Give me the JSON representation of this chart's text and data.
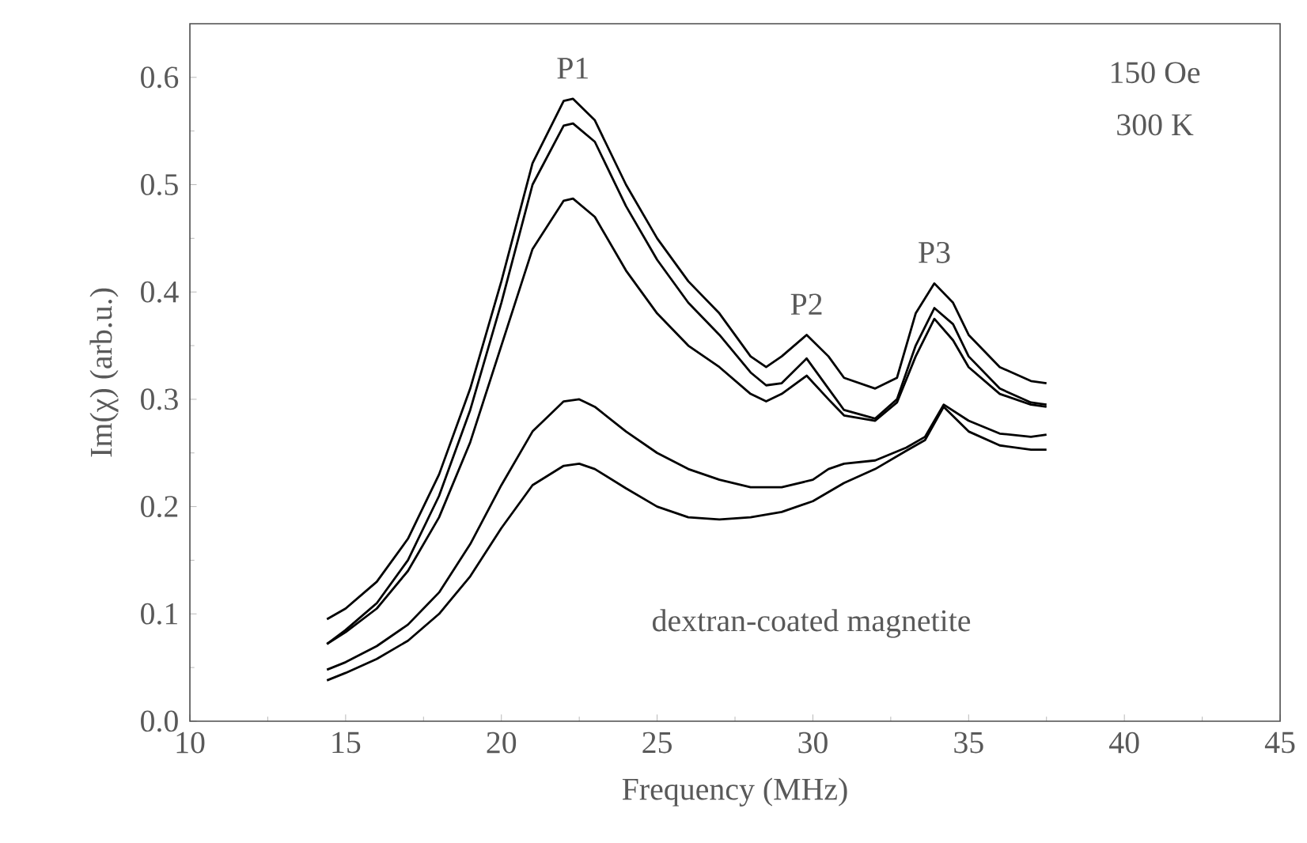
{
  "chart_data": {
    "type": "line",
    "xlabel": "Frequency (MHz)",
    "ylabel": "Im(χ) (arb.u.)",
    "xlim": [
      10,
      45
    ],
    "ylim": [
      0,
      0.65
    ],
    "xticks": [
      10,
      15,
      20,
      25,
      30,
      35,
      40,
      45
    ],
    "yticks": [
      {
        "value": 0,
        "label": "0.0"
      },
      {
        "value": 0.1,
        "label": "0.1"
      },
      {
        "value": 0.2,
        "label": "0.2"
      },
      {
        "value": 0.3,
        "label": "0.3"
      },
      {
        "value": 0.4,
        "label": "0.4"
      },
      {
        "value": 0.5,
        "label": "0.5"
      },
      {
        "value": 0.6,
        "label": "0.6"
      }
    ],
    "marker": "none",
    "line_style": "solid",
    "annotations": [
      {
        "text": "P1",
        "x": 22.3,
        "y": 0.58
      },
      {
        "text": "P2",
        "x": 29.8,
        "y": 0.36
      },
      {
        "text": "P3",
        "x": 33.9,
        "y": 0.408
      },
      "150 Oe",
      "300 K",
      "dextran-coated magnetite"
    ],
    "series": [
      {
        "color": "#000000",
        "x": [
          14.4,
          15,
          16,
          17,
          18,
          19,
          20,
          21,
          22,
          22.3,
          23,
          24,
          25,
          26,
          27,
          28,
          28.5,
          29,
          29.8,
          30.5,
          31,
          32,
          32.7,
          33.3,
          33.9,
          34.5,
          35,
          36,
          37,
          37.5
        ],
        "values": [
          0.095,
          0.105,
          0.13,
          0.17,
          0.23,
          0.31,
          0.41,
          0.52,
          0.578,
          0.58,
          0.56,
          0.5,
          0.45,
          0.41,
          0.38,
          0.34,
          0.33,
          0.34,
          0.36,
          0.34,
          0.32,
          0.31,
          0.32,
          0.38,
          0.408,
          0.39,
          0.36,
          0.33,
          0.317,
          0.315
        ]
      },
      {
        "color": "#000000",
        "x": [
          14.4,
          15,
          16,
          17,
          18,
          19,
          20,
          21,
          22,
          22.3,
          23,
          24,
          25,
          26,
          27,
          28,
          28.5,
          29,
          29.8,
          30.5,
          31,
          32,
          32.7,
          33.3,
          33.9,
          34.5,
          35,
          36,
          37,
          37.5
        ],
        "values": [
          0.072,
          0.085,
          0.11,
          0.15,
          0.21,
          0.29,
          0.39,
          0.5,
          0.555,
          0.557,
          0.54,
          0.48,
          0.43,
          0.39,
          0.36,
          0.325,
          0.313,
          0.315,
          0.338,
          0.31,
          0.29,
          0.282,
          0.3,
          0.35,
          0.385,
          0.37,
          0.34,
          0.31,
          0.297,
          0.295
        ]
      },
      {
        "color": "#000000",
        "x": [
          14.4,
          15,
          16,
          17,
          18,
          19,
          20,
          21,
          22,
          22.3,
          23,
          24,
          25,
          26,
          27,
          28,
          28.5,
          29,
          29.8,
          30.5,
          31,
          32,
          32.7,
          33.3,
          33.9,
          34.5,
          35,
          36,
          37,
          37.5
        ],
        "values": [
          0.072,
          0.083,
          0.105,
          0.14,
          0.19,
          0.26,
          0.35,
          0.44,
          0.485,
          0.487,
          0.47,
          0.42,
          0.38,
          0.35,
          0.33,
          0.305,
          0.298,
          0.305,
          0.322,
          0.3,
          0.285,
          0.28,
          0.297,
          0.34,
          0.375,
          0.355,
          0.33,
          0.305,
          0.295,
          0.293
        ]
      },
      {
        "color": "#000000",
        "x": [
          14.4,
          15,
          16,
          17,
          18,
          19,
          20,
          21,
          22,
          22.5,
          23,
          24,
          25,
          26,
          27,
          28,
          29,
          30,
          30.5,
          31,
          32,
          33,
          33.6,
          34.2,
          35,
          36,
          37,
          37.5
        ],
        "values": [
          0.048,
          0.055,
          0.07,
          0.09,
          0.12,
          0.165,
          0.22,
          0.27,
          0.298,
          0.3,
          0.293,
          0.27,
          0.25,
          0.235,
          0.225,
          0.218,
          0.218,
          0.225,
          0.235,
          0.24,
          0.243,
          0.255,
          0.265,
          0.295,
          0.28,
          0.268,
          0.265,
          0.267
        ]
      },
      {
        "color": "#000000",
        "x": [
          14.4,
          15,
          16,
          17,
          18,
          19,
          20,
          21,
          22,
          22.5,
          23,
          24,
          25,
          26,
          27,
          28,
          29,
          30,
          31,
          32,
          33,
          33.6,
          34.2,
          35,
          36,
          37,
          37.5
        ],
        "values": [
          0.038,
          0.045,
          0.058,
          0.075,
          0.1,
          0.135,
          0.18,
          0.22,
          0.238,
          0.24,
          0.235,
          0.217,
          0.2,
          0.19,
          0.188,
          0.19,
          0.195,
          0.205,
          0.222,
          0.235,
          0.252,
          0.262,
          0.293,
          0.27,
          0.257,
          0.253,
          0.253
        ]
      }
    ]
  }
}
